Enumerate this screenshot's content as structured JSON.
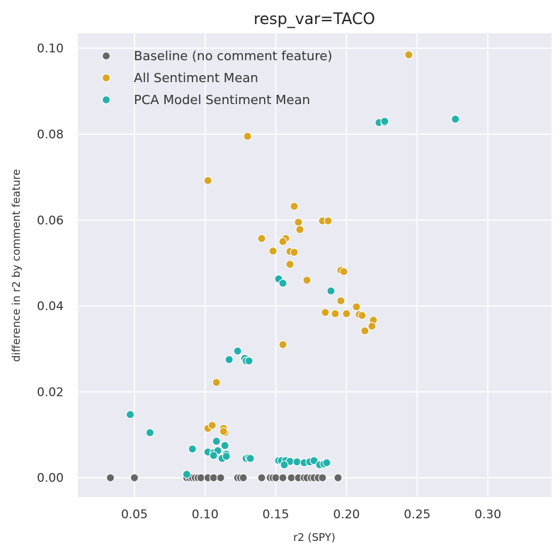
{
  "chart_data": {
    "type": "scatter",
    "title": "resp_var=TACO",
    "xlabel": "r2 (SPY)",
    "ylabel": "difference in r2 by comment feature",
    "xlim": [
      0.01,
      0.345
    ],
    "ylim": [
      -0.0045,
      0.1035
    ],
    "xticks": [
      0.05,
      0.1,
      0.15,
      0.2,
      0.25,
      0.3
    ],
    "xtick_labels": [
      "0.05",
      "0.10",
      "0.15",
      "0.20",
      "0.25",
      "0.30"
    ],
    "yticks": [
      0.0,
      0.02,
      0.04,
      0.06,
      0.08,
      0.1
    ],
    "ytick_labels": [
      "0.00",
      "0.02",
      "0.04",
      "0.06",
      "0.08",
      "0.10"
    ],
    "grid": true,
    "background": "#EAEAF2",
    "legend_position": "top-left",
    "series": [
      {
        "name": "Baseline (no comment feature)",
        "color": "#666666",
        "points": [
          [
            0.033,
            0.0
          ],
          [
            0.05,
            0.0
          ],
          [
            0.087,
            0.0
          ],
          [
            0.089,
            0.0
          ],
          [
            0.091,
            0.0
          ],
          [
            0.093,
            0.0
          ],
          [
            0.095,
            0.0
          ],
          [
            0.097,
            0.0
          ],
          [
            0.102,
            0.0
          ],
          [
            0.106,
            0.0
          ],
          [
            0.111,
            0.0
          ],
          [
            0.123,
            0.0
          ],
          [
            0.125,
            0.0
          ],
          [
            0.127,
            0.0
          ],
          [
            0.14,
            0.0
          ],
          [
            0.146,
            0.0
          ],
          [
            0.148,
            0.0
          ],
          [
            0.15,
            0.0
          ],
          [
            0.155,
            0.0
          ],
          [
            0.161,
            0.0
          ],
          [
            0.166,
            0.0
          ],
          [
            0.17,
            0.0
          ],
          [
            0.172,
            0.0
          ],
          [
            0.175,
            0.0
          ],
          [
            0.177,
            0.0
          ],
          [
            0.18,
            0.0
          ],
          [
            0.183,
            0.0
          ],
          [
            0.194,
            0.0
          ]
        ]
      },
      {
        "name": "All Sentiment Mean",
        "color": "#DAA520",
        "points": [
          [
            0.244,
            0.0985
          ],
          [
            0.13,
            0.0795
          ],
          [
            0.102,
            0.0692
          ],
          [
            0.163,
            0.0632
          ],
          [
            0.166,
            0.0595
          ],
          [
            0.183,
            0.0598
          ],
          [
            0.187,
            0.0598
          ],
          [
            0.167,
            0.0578
          ],
          [
            0.14,
            0.0557
          ],
          [
            0.157,
            0.0557
          ],
          [
            0.155,
            0.055
          ],
          [
            0.148,
            0.0528
          ],
          [
            0.16,
            0.0527
          ],
          [
            0.163,
            0.0525
          ],
          [
            0.16,
            0.0497
          ],
          [
            0.196,
            0.0483
          ],
          [
            0.198,
            0.048
          ],
          [
            0.172,
            0.046
          ],
          [
            0.196,
            0.0412
          ],
          [
            0.207,
            0.0398
          ],
          [
            0.185,
            0.0385
          ],
          [
            0.192,
            0.0382
          ],
          [
            0.2,
            0.0382
          ],
          [
            0.209,
            0.038
          ],
          [
            0.211,
            0.0378
          ],
          [
            0.219,
            0.0367
          ],
          [
            0.218,
            0.0353
          ],
          [
            0.213,
            0.0342
          ],
          [
            0.155,
            0.031
          ],
          [
            0.108,
            0.0222
          ],
          [
            0.102,
            0.0115
          ],
          [
            0.105,
            0.0122
          ],
          [
            0.113,
            0.0115
          ],
          [
            0.114,
            0.0105
          ],
          [
            0.113,
            0.0108
          ]
        ]
      },
      {
        "name": "PCA Model Sentiment Mean",
        "color": "#20B2AA",
        "points": [
          [
            0.277,
            0.0835
          ],
          [
            0.223,
            0.0827
          ],
          [
            0.227,
            0.0827
          ],
          [
            0.227,
            0.083
          ],
          [
            0.152,
            0.0463
          ],
          [
            0.155,
            0.0453
          ],
          [
            0.189,
            0.0435
          ],
          [
            0.123,
            0.0295
          ],
          [
            0.128,
            0.0278
          ],
          [
            0.129,
            0.0272
          ],
          [
            0.131,
            0.0272
          ],
          [
            0.117,
            0.0275
          ],
          [
            0.047,
            0.0147
          ],
          [
            0.061,
            0.0105
          ],
          [
            0.091,
            0.0067
          ],
          [
            0.108,
            0.0085
          ],
          [
            0.114,
            0.0075
          ],
          [
            0.102,
            0.006
          ],
          [
            0.106,
            0.0058
          ],
          [
            0.109,
            0.0063
          ],
          [
            0.115,
            0.0055
          ],
          [
            0.106,
            0.0052
          ],
          [
            0.112,
            0.0045
          ],
          [
            0.115,
            0.005
          ],
          [
            0.129,
            0.0045
          ],
          [
            0.131,
            0.0047
          ],
          [
            0.132,
            0.0045
          ],
          [
            0.087,
            0.0008
          ],
          [
            0.152,
            0.004
          ],
          [
            0.154,
            0.004
          ],
          [
            0.157,
            0.004
          ],
          [
            0.16,
            0.0038
          ],
          [
            0.165,
            0.0037
          ],
          [
            0.17,
            0.0035
          ],
          [
            0.174,
            0.0037
          ],
          [
            0.177,
            0.004
          ],
          [
            0.156,
            0.003
          ],
          [
            0.181,
            0.003
          ],
          [
            0.184,
            0.0032
          ],
          [
            0.186,
            0.0035
          ]
        ]
      }
    ]
  }
}
